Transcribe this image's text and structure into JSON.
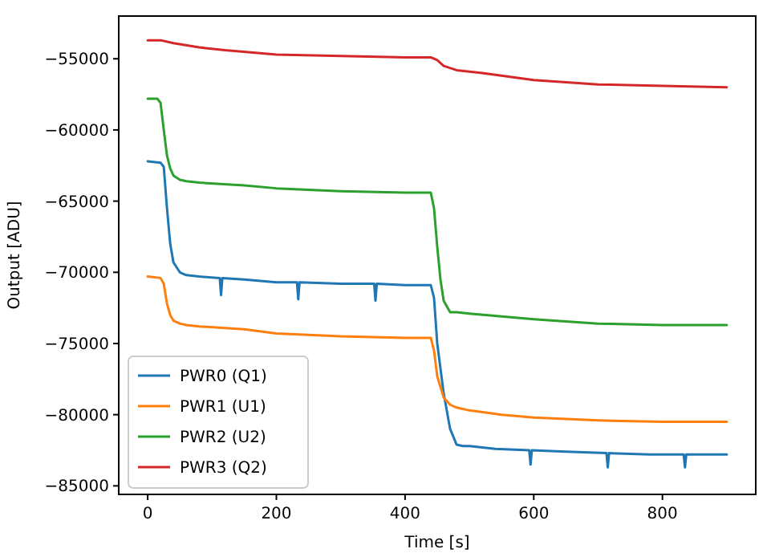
{
  "chart_data": {
    "type": "line",
    "xlabel": "Time [s]",
    "ylabel": "Output [ADU]",
    "xlim": [
      -45,
      945
    ],
    "ylim": [
      -85600,
      -52000
    ],
    "xticks": [
      0,
      200,
      400,
      600,
      800
    ],
    "yticks": [
      -85000,
      -80000,
      -75000,
      -70000,
      -65000,
      -60000,
      -55000
    ],
    "legend": "bottom left",
    "grid": false,
    "line_style": "solid",
    "marker": "none",
    "series": [
      {
        "name": "PWR0 (Q1)",
        "color": "#1f77b4",
        "x": [
          0,
          20,
          25,
          30,
          35,
          40,
          50,
          60,
          80,
          112,
          114,
          116,
          150,
          200,
          232,
          234,
          236,
          300,
          352,
          354,
          356,
          400,
          440,
          445,
          450,
          460,
          470,
          480,
          490,
          500,
          540,
          593,
          595,
          597,
          650,
          713,
          715,
          717,
          780,
          833,
          835,
          837,
          900
        ],
        "values": [
          -62200,
          -62300,
          -62600,
          -65500,
          -68000,
          -69300,
          -70000,
          -70200,
          -70300,
          -70400,
          -71600,
          -70400,
          -70500,
          -70700,
          -70700,
          -71900,
          -70700,
          -70800,
          -70800,
          -72000,
          -70800,
          -70900,
          -70900,
          -71800,
          -75000,
          -78500,
          -81000,
          -82100,
          -82200,
          -82200,
          -82400,
          -82500,
          -83500,
          -82500,
          -82600,
          -82700,
          -83700,
          -82700,
          -82800,
          -82800,
          -83700,
          -82800,
          -82800
        ]
      },
      {
        "name": "PWR1 (U1)",
        "color": "#ff7f0e",
        "x": [
          0,
          20,
          25,
          30,
          35,
          40,
          50,
          60,
          80,
          150,
          200,
          300,
          400,
          440,
          445,
          450,
          460,
          470,
          480,
          500,
          550,
          600,
          700,
          800,
          900
        ],
        "values": [
          -70300,
          -70400,
          -70800,
          -72200,
          -73000,
          -73400,
          -73600,
          -73700,
          -73800,
          -74000,
          -74300,
          -74500,
          -74600,
          -74600,
          -75500,
          -77300,
          -78800,
          -79300,
          -79500,
          -79700,
          -80000,
          -80200,
          -80400,
          -80500,
          -80500
        ]
      },
      {
        "name": "PWR2 (U2)",
        "color": "#2ca02c",
        "x": [
          0,
          15,
          20,
          25,
          30,
          35,
          40,
          50,
          60,
          80,
          150,
          200,
          300,
          400,
          440,
          445,
          450,
          455,
          460,
          470,
          480,
          500,
          550,
          600,
          700,
          800,
          900
        ],
        "values": [
          -57800,
          -57800,
          -58100,
          -60000,
          -61800,
          -62700,
          -63200,
          -63500,
          -63600,
          -63700,
          -63900,
          -64100,
          -64300,
          -64400,
          -64400,
          -65500,
          -68200,
          -70500,
          -72000,
          -72800,
          -72800,
          -72900,
          -73100,
          -73300,
          -73600,
          -73700,
          -73700
        ]
      },
      {
        "name": "PWR3 (Q2)",
        "color": "#d62728",
        "x": [
          0,
          20,
          40,
          80,
          120,
          200,
          300,
          400,
          440,
          450,
          460,
          480,
          520,
          600,
          700,
          800,
          900
        ],
        "values": [
          -53700,
          -53700,
          -53900,
          -54200,
          -54400,
          -54700,
          -54800,
          -54900,
          -54900,
          -55100,
          -55500,
          -55800,
          -56000,
          -56500,
          -56800,
          -56900,
          -57000
        ]
      }
    ]
  }
}
